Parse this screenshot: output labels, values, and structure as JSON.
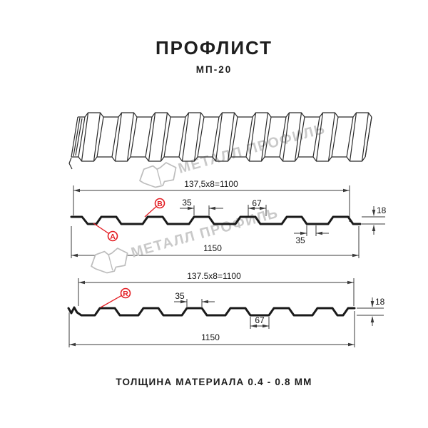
{
  "header": {
    "title": "ПРОФЛИСТ",
    "subtitle": "МП-20"
  },
  "watermark": {
    "text": "МЕТАЛЛ ПРОФИЛЬ"
  },
  "profile_top": {
    "pitch_formula": "137,5x8=1100",
    "rib_top_width": "35",
    "rib_gap_width": "67",
    "profile_height": "18",
    "valley_width": "35",
    "total_width": "1150",
    "side_a_label": "A",
    "side_b_label": "B"
  },
  "profile_bottom": {
    "pitch_formula": "137.5x8=1100",
    "rib_top_width": "35",
    "profile_height": "18",
    "valley_width": "67",
    "total_width": "1150",
    "side_r_label": "R"
  },
  "footer": {
    "material_thickness": "ТОЛЩИНА МАТЕРИАЛА 0.4 - 0.8 ММ"
  },
  "colors": {
    "accent_red": "#e31e24",
    "drawing_line": "#1a1a1a",
    "dimension_line": "#3a3a3a",
    "watermark_gray": "#c9c9c9",
    "background": "#ffffff"
  }
}
